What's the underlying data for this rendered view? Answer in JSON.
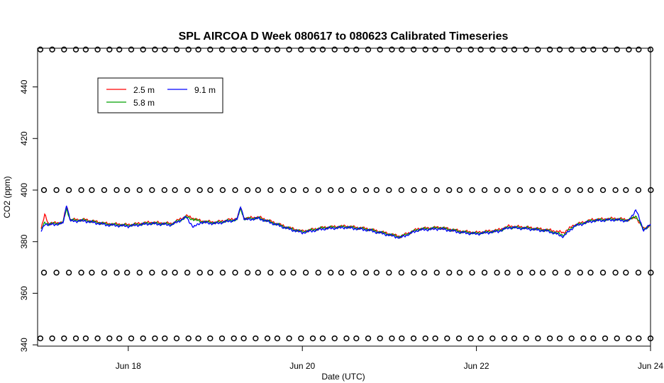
{
  "chart_data": {
    "type": "line",
    "title": "SPL AIRCOA D  Week 080617 to 080623  Calibrated Timeseries",
    "xlabel": "Date (UTC)",
    "ylabel": "CO2 (ppm)",
    "xlim": [
      "2008-06-16T23:00",
      "2008-06-24T00:00"
    ],
    "ylim": [
      339.5,
      455
    ],
    "x_ticks": [
      {
        "date": "2008-06-18",
        "label": "Jun 18"
      },
      {
        "date": "2008-06-20",
        "label": "Jun 20"
      },
      {
        "date": "2008-06-22",
        "label": "Jun 22"
      },
      {
        "date": "2008-06-24",
        "label": "Jun 24"
      }
    ],
    "y_ticks": [
      340,
      360,
      380,
      400,
      420,
      440
    ],
    "legend": {
      "placement": "top-left"
    },
    "series": [
      {
        "name": "2.5 m",
        "color": "#ff0000",
        "points": [
          [
            "2008-06-17T00:00",
            385.0
          ],
          [
            "2008-06-17T01:00",
            390.5
          ],
          [
            "2008-06-17T02:00",
            387.0
          ],
          [
            "2008-06-17T06:00",
            387.5
          ],
          [
            "2008-06-17T07:00",
            394.0
          ],
          [
            "2008-06-17T08:00",
            388.5
          ],
          [
            "2008-06-17T12:00",
            388.5
          ],
          [
            "2008-06-17T18:00",
            387.0
          ],
          [
            "2008-06-18T00:00",
            386.5
          ],
          [
            "2008-06-18T06:00",
            387.5
          ],
          [
            "2008-06-18T12:00",
            387.0
          ],
          [
            "2008-06-18T16:00",
            390.0
          ],
          [
            "2008-06-18T20:00",
            388.0
          ],
          [
            "2008-06-19T00:00",
            387.5
          ],
          [
            "2008-06-19T06:00",
            389.0
          ],
          [
            "2008-06-19T07:00",
            393.0
          ],
          [
            "2008-06-19T08:00",
            389.0
          ],
          [
            "2008-06-19T12:00",
            389.5
          ],
          [
            "2008-06-19T20:00",
            385.5
          ],
          [
            "2008-06-20T00:00",
            384.0
          ],
          [
            "2008-06-20T06:00",
            385.5
          ],
          [
            "2008-06-20T12:00",
            386.0
          ],
          [
            "2008-06-20T18:00",
            385.0
          ],
          [
            "2008-06-21T00:00",
            383.0
          ],
          [
            "2008-06-21T03:00",
            382.0
          ],
          [
            "2008-06-21T08:00",
            385.0
          ],
          [
            "2008-06-21T14:00",
            385.5
          ],
          [
            "2008-06-21T20:00",
            384.0
          ],
          [
            "2008-06-22T00:00",
            383.5
          ],
          [
            "2008-06-22T06:00",
            384.5
          ],
          [
            "2008-06-22T09:00",
            386.0
          ],
          [
            "2008-06-22T14:00",
            385.5
          ],
          [
            "2008-06-22T20:00",
            384.5
          ],
          [
            "2008-06-23T00:00",
            383.5
          ],
          [
            "2008-06-23T03:00",
            386.5
          ],
          [
            "2008-06-23T08:00",
            388.5
          ],
          [
            "2008-06-23T14:00",
            389.0
          ],
          [
            "2008-06-23T18:00",
            388.5
          ],
          [
            "2008-06-23T20:00",
            389.5
          ],
          [
            "2008-06-23T22:00",
            385.0
          ],
          [
            "2008-06-24T00:00",
            386.5
          ]
        ]
      },
      {
        "name": "5.8 m",
        "color": "#00a000",
        "points": [
          [
            "2008-06-17T00:00",
            384.5
          ],
          [
            "2008-06-17T01:00",
            387.5
          ],
          [
            "2008-06-17T02:00",
            386.8
          ],
          [
            "2008-06-17T06:00",
            387.3
          ],
          [
            "2008-06-17T07:00",
            393.0
          ],
          [
            "2008-06-17T08:00",
            388.3
          ],
          [
            "2008-06-17T12:00",
            388.3
          ],
          [
            "2008-06-17T18:00",
            386.8
          ],
          [
            "2008-06-18T00:00",
            386.3
          ],
          [
            "2008-06-18T06:00",
            387.2
          ],
          [
            "2008-06-18T12:00",
            386.8
          ],
          [
            "2008-06-18T16:00",
            389.5
          ],
          [
            "2008-06-18T20:00",
            387.8
          ],
          [
            "2008-06-19T00:00",
            387.3
          ],
          [
            "2008-06-19T06:00",
            388.6
          ],
          [
            "2008-06-19T07:00",
            393.0
          ],
          [
            "2008-06-19T08:00",
            388.8
          ],
          [
            "2008-06-19T12:00",
            389.2
          ],
          [
            "2008-06-19T20:00",
            385.3
          ],
          [
            "2008-06-20T00:00",
            383.8
          ],
          [
            "2008-06-20T06:00",
            385.4
          ],
          [
            "2008-06-20T12:00",
            385.8
          ],
          [
            "2008-06-20T18:00",
            384.8
          ],
          [
            "2008-06-21T00:00",
            382.8
          ],
          [
            "2008-06-21T03:00",
            381.8
          ],
          [
            "2008-06-21T08:00",
            384.8
          ],
          [
            "2008-06-21T14:00",
            385.4
          ],
          [
            "2008-06-21T20:00",
            383.8
          ],
          [
            "2008-06-22T00:00",
            383.2
          ],
          [
            "2008-06-22T06:00",
            384.2
          ],
          [
            "2008-06-22T09:00",
            385.6
          ],
          [
            "2008-06-22T14:00",
            385.3
          ],
          [
            "2008-06-22T20:00",
            384.2
          ],
          [
            "2008-06-23T00:00",
            382.5
          ],
          [
            "2008-06-23T03:00",
            386.2
          ],
          [
            "2008-06-23T08:00",
            388.3
          ],
          [
            "2008-06-23T14:00",
            388.7
          ],
          [
            "2008-06-23T18:00",
            388.3
          ],
          [
            "2008-06-23T20:00",
            390.0
          ],
          [
            "2008-06-23T22:00",
            384.8
          ],
          [
            "2008-06-24T00:00",
            386.3
          ]
        ]
      },
      {
        "name": "9.1 m",
        "color": "#0000ff",
        "points": [
          [
            "2008-06-17T00:00",
            384.0
          ],
          [
            "2008-06-17T01:00",
            387.0
          ],
          [
            "2008-06-17T02:00",
            386.5
          ],
          [
            "2008-06-17T06:00",
            387.0
          ],
          [
            "2008-06-17T07:00",
            394.5
          ],
          [
            "2008-06-17T08:00",
            388.0
          ],
          [
            "2008-06-17T12:00",
            388.0
          ],
          [
            "2008-06-17T18:00",
            386.5
          ],
          [
            "2008-06-18T00:00",
            386.0
          ],
          [
            "2008-06-18T06:00",
            387.0
          ],
          [
            "2008-06-18T12:00",
            386.5
          ],
          [
            "2008-06-18T16:00",
            389.5
          ],
          [
            "2008-06-18T18:00",
            385.5
          ],
          [
            "2008-06-18T20:00",
            387.5
          ],
          [
            "2008-06-19T00:00",
            387.0
          ],
          [
            "2008-06-19T06:00",
            388.5
          ],
          [
            "2008-06-19T07:00",
            394.0
          ],
          [
            "2008-06-19T08:00",
            388.5
          ],
          [
            "2008-06-19T12:00",
            389.0
          ],
          [
            "2008-06-19T20:00",
            385.0
          ],
          [
            "2008-06-20T00:00",
            383.5
          ],
          [
            "2008-06-20T06:00",
            385.0
          ],
          [
            "2008-06-20T12:00",
            385.5
          ],
          [
            "2008-06-20T18:00",
            384.5
          ],
          [
            "2008-06-21T00:00",
            382.5
          ],
          [
            "2008-06-21T03:00",
            381.5
          ],
          [
            "2008-06-21T08:00",
            384.5
          ],
          [
            "2008-06-21T14:00",
            385.0
          ],
          [
            "2008-06-21T20:00",
            383.5
          ],
          [
            "2008-06-22T00:00",
            383.0
          ],
          [
            "2008-06-22T06:00",
            384.0
          ],
          [
            "2008-06-22T09:00",
            385.5
          ],
          [
            "2008-06-22T14:00",
            385.0
          ],
          [
            "2008-06-22T20:00",
            384.0
          ],
          [
            "2008-06-23T00:00",
            382.0
          ],
          [
            "2008-06-23T03:00",
            386.0
          ],
          [
            "2008-06-23T08:00",
            388.0
          ],
          [
            "2008-06-23T14:00",
            388.5
          ],
          [
            "2008-06-23T18:00",
            388.0
          ],
          [
            "2008-06-23T20:00",
            392.5
          ],
          [
            "2008-06-23T22:00",
            384.5
          ],
          [
            "2008-06-24T00:00",
            386.5
          ]
        ]
      }
    ],
    "marker_rows": [
      {
        "y": 454.5,
        "x_start": "2008-06-17T00:00",
        "x_end": "2008-06-24T00:00",
        "count": 55,
        "marker": "o"
      },
      {
        "y": 400.0,
        "x_start": "2008-06-17T01:00",
        "x_end": "2008-06-24T00:00",
        "count": 52,
        "marker": "o"
      },
      {
        "y": 368.0,
        "x_start": "2008-06-17T01:00",
        "x_end": "2008-06-24T00:00",
        "count": 52,
        "marker": "o"
      },
      {
        "y": 342.5,
        "x_start": "2008-06-17T00:00",
        "x_end": "2008-06-24T00:00",
        "count": 55,
        "marker": "o"
      }
    ]
  }
}
